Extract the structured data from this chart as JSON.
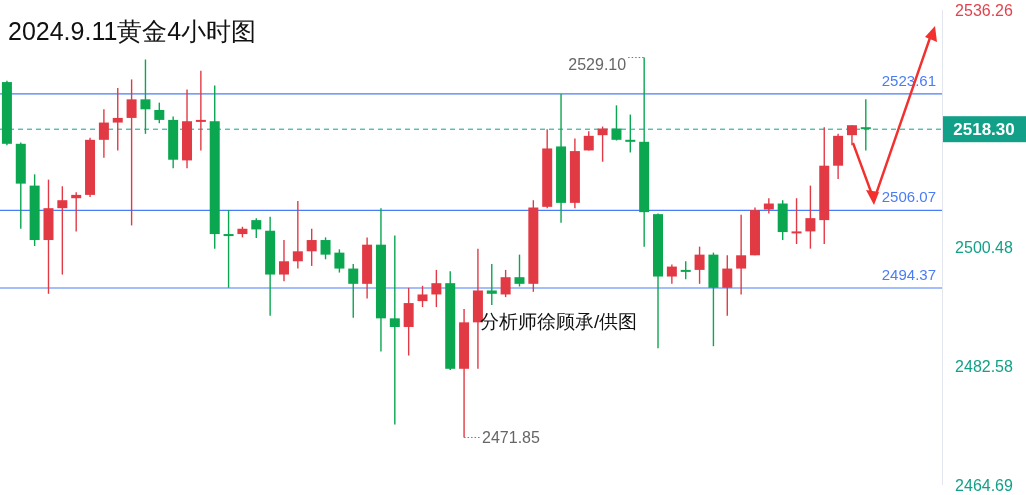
{
  "chart_data": {
    "type": "candlestick",
    "title": "2024.9.11黄金4小时图",
    "categories": [
      null,
      null,
      null,
      null,
      null,
      null,
      null,
      null,
      null,
      null,
      null,
      null,
      null,
      null,
      null,
      null,
      null,
      null,
      null,
      null,
      null,
      null,
      null,
      null,
      null,
      null,
      null,
      null,
      null,
      null,
      null,
      null,
      null,
      null,
      null,
      null,
      null,
      null,
      null,
      null,
      null,
      null,
      null,
      null,
      null,
      null,
      null,
      null,
      null,
      null,
      null,
      null,
      null,
      null,
      null,
      null,
      null,
      null,
      null,
      null,
      null,
      null,
      null,
      null,
      null,
      null,
      null,
      null
    ],
    "ohlc": [
      [
        2525.4,
        2525.6,
        2515.9,
        2516.1
      ],
      [
        2516.1,
        2516.3,
        2503.3,
        2510.1
      ],
      [
        2509.8,
        2511.5,
        2500.7,
        2501.6
      ],
      [
        2501.6,
        2510.7,
        2493.5,
        2506.4
      ],
      [
        2506.4,
        2509.7,
        2496.4,
        2507.6
      ],
      [
        2507.9,
        2508.8,
        2502.9,
        2508.4
      ],
      [
        2508.4,
        2517.0,
        2508.1,
        2516.7
      ],
      [
        2516.7,
        2521.3,
        2514.0,
        2519.3
      ],
      [
        2519.3,
        2524.5,
        2515.1,
        2520.0
      ],
      [
        2520.0,
        2525.8,
        2503.8,
        2522.8
      ],
      [
        2522.8,
        2528.8,
        2517.6,
        2521.3
      ],
      [
        2521.2,
        2522.3,
        2519.2,
        2519.7
      ],
      [
        2519.7,
        2520.2,
        2512.4,
        2513.7
      ],
      [
        2513.6,
        2524.3,
        2512.4,
        2519.5
      ],
      [
        2519.5,
        2527.1,
        2515.1,
        2519.7
      ],
      [
        2519.5,
        2524.9,
        2500.3,
        2502.5
      ],
      [
        2502.5,
        2506.1,
        2494.4,
        2502.3
      ],
      [
        2502.5,
        2503.6,
        2502.0,
        2503.3
      ],
      [
        2504.6,
        2504.9,
        2501.9,
        2503.2
      ],
      [
        2503.0,
        2505.1,
        2490.2,
        2496.4
      ],
      [
        2496.4,
        2501.6,
        2495.4,
        2498.4
      ],
      [
        2498.4,
        2507.5,
        2497.3,
        2499.9
      ],
      [
        2499.9,
        2503.3,
        2497.7,
        2501.6
      ],
      [
        2501.6,
        2502.0,
        2498.7,
        2499.4
      ],
      [
        2499.7,
        2500.2,
        2496.7,
        2497.3
      ],
      [
        2497.3,
        2498.0,
        2489.9,
        2495.0
      ],
      [
        2495.0,
        2502.0,
        2492.8,
        2500.9
      ],
      [
        2500.9,
        2506.4,
        2484.8,
        2489.8
      ],
      [
        2489.8,
        2502.3,
        2473.8,
        2488.5
      ],
      [
        2488.5,
        2494.4,
        2484.2,
        2492.1
      ],
      [
        2492.4,
        2494.7,
        2491.5,
        2493.4
      ],
      [
        2493.4,
        2497.1,
        2491.5,
        2495.1
      ],
      [
        2495.1,
        2496.9,
        2482.0,
        2482.2
      ],
      [
        2482.2,
        2491.2,
        2471.85,
        2489.2
      ],
      [
        2489.2,
        2500.3,
        2482.2,
        2494.0
      ],
      [
        2494.0,
        2498.0,
        2491.8,
        2493.5
      ],
      [
        2493.4,
        2497.1,
        2493.0,
        2496.0
      ],
      [
        2496.0,
        2499.4,
        2494.6,
        2495.0
      ],
      [
        2495.0,
        2507.6,
        2493.8,
        2506.5
      ],
      [
        2506.6,
        2518.3,
        2506.4,
        2515.4
      ],
      [
        2515.7,
        2523.6,
        2504.2,
        2507.2
      ],
      [
        2507.2,
        2516.9,
        2506.4,
        2515.0
      ],
      [
        2515.1,
        2518.0,
        2515.1,
        2517.3
      ],
      [
        2517.4,
        2518.7,
        2513.4,
        2518.4
      ],
      [
        2518.4,
        2521.9,
        2516.6,
        2516.7
      ],
      [
        2516.7,
        2520.5,
        2514.8,
        2516.6
      ],
      [
        2516.4,
        2529.1,
        2500.6,
        2505.8
      ],
      [
        2505.5,
        2505.6,
        2485.3,
        2496.1
      ],
      [
        2496.1,
        2497.9,
        2495.0,
        2497.6
      ],
      [
        2497.1,
        2498.4,
        2495.7,
        2497.0
      ],
      [
        2497.1,
        2500.6,
        2495.0,
        2499.4
      ],
      [
        2499.4,
        2499.7,
        2485.6,
        2494.4
      ],
      [
        2494.4,
        2499.3,
        2490.2,
        2497.3
      ],
      [
        2497.3,
        2505.4,
        2493.4,
        2499.3
      ],
      [
        2499.3,
        2506.5,
        2499.3,
        2506.1
      ],
      [
        2506.2,
        2507.9,
        2505.6,
        2507.1
      ],
      [
        2507.1,
        2507.6,
        2501.6,
        2502.8
      ],
      [
        2502.8,
        2507.9,
        2501.0,
        2502.9
      ],
      [
        2502.9,
        2509.8,
        2500.3,
        2504.9
      ],
      [
        2504.6,
        2518.6,
        2501.0,
        2512.8
      ],
      [
        2512.8,
        2517.6,
        2510.8,
        2517.3
      ],
      [
        2517.4,
        2518.9,
        2515.9,
        2518.9
      ],
      [
        2518.6,
        2522.8,
        2515.1,
        2518.3
      ],
      null,
      null,
      null,
      null,
      null
    ],
    "colors": [
      "#0aa650",
      "#0aa650",
      "#0aa650",
      "#e23a45",
      "#e23a45",
      "#e23a45",
      "#e23a45",
      "#e23a45",
      "#e23a45",
      "#e23a45",
      "#0aa650",
      "#0aa650",
      "#0aa650",
      "#e23a45",
      "#e23a45",
      "#0aa650",
      "#0aa650",
      "#e23a45",
      "#0aa650",
      "#0aa650",
      "#e23a45",
      "#e23a45",
      "#e23a45",
      "#0aa650",
      "#0aa650",
      "#0aa650",
      "#e23a45",
      "#0aa650",
      "#0aa650",
      "#e23a45",
      "#e23a45",
      "#e23a45",
      "#0aa650",
      "#e23a45",
      "#e23a45",
      "#0aa650",
      "#e23a45",
      "#0aa650",
      "#e23a45",
      "#e23a45",
      "#0aa650",
      "#e23a45",
      "#e23a45",
      "#e23a45",
      "#0aa650",
      "#0aa650",
      "#0aa650",
      "#0aa650",
      "#e23a45",
      "#0aa650",
      "#e23a45",
      "#0aa650",
      "#e23a45",
      "#e23a45",
      "#e23a45",
      "#e23a45",
      "#0aa650",
      "#e23a45",
      "#e23a45",
      "#e23a45",
      "#e23a45",
      "#e23a45",
      "#0aa650",
      null,
      null,
      null,
      null,
      null
    ],
    "ylim": [
      2464.69,
      2536.26
    ],
    "yticks": [
      2536.26,
      2500.48,
      2482.58,
      2464.69
    ],
    "tick_labels": "y",
    "ref_lines": [
      {
        "axis": "y",
        "value": 2523.61,
        "label": "2523.61",
        "color": "#4a7cf7",
        "line_style": "solid"
      },
      {
        "axis": "y",
        "value": 2506.07,
        "label": "2506.07",
        "color": "#4a7cf7",
        "line_style": "solid"
      },
      {
        "axis": "y",
        "value": 2494.37,
        "label": "2494.37",
        "color": "#4a7cf7",
        "line_style": "solid"
      },
      {
        "axis": "y",
        "value": 2518.3,
        "label": "2518.30",
        "color": "#13a088",
        "line_style": "dashed"
      }
    ],
    "annotations": [
      "2529.10",
      "2471.85",
      "分析师徐顾承/供图"
    ]
  }
}
